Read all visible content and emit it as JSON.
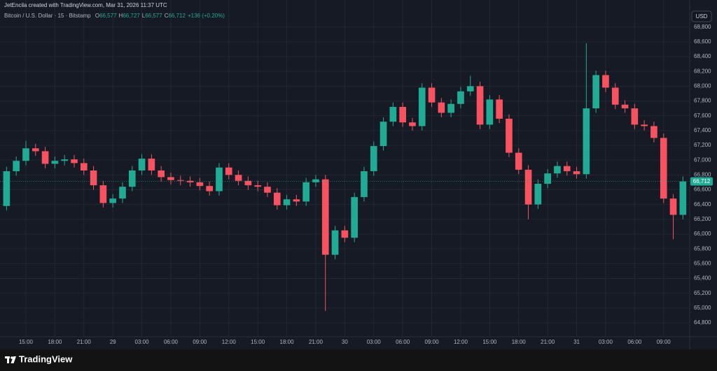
{
  "header": {
    "credit": "JetEncila created with TradingView.com, Mar 31, 2026 11:37 UTC",
    "symbol": "Bitcoin / U.S. Dollar · 15 · Bitstamp",
    "ohlc": [
      {
        "label": "O",
        "value": "66,577"
      },
      {
        "label": "H",
        "value": "66,727"
      },
      {
        "label": "L",
        "value": "66,577"
      },
      {
        "label": "C",
        "value": "66,712"
      }
    ],
    "change": "+136 (+0.20%)"
  },
  "footer": {
    "brand": "TradingView"
  },
  "chart_data": {
    "type": "candlestick",
    "currency": "USD",
    "up_color": "#22ab94",
    "down_color": "#f7525f",
    "grid": true,
    "last_price": {
      "value": 66712,
      "label": "66,712"
    },
    "x": [
      -2,
      -1,
      0,
      1,
      2,
      3,
      4,
      5,
      6,
      7,
      8,
      9,
      10,
      11,
      12,
      13,
      14,
      15,
      16,
      17,
      18,
      19,
      20,
      21,
      22,
      23,
      24,
      25,
      26,
      27,
      28,
      29,
      30,
      31,
      32,
      33,
      34,
      35,
      36,
      37,
      38,
      39,
      40,
      41,
      42,
      43,
      44,
      45,
      46,
      47,
      48,
      49,
      50,
      51,
      52,
      53,
      54,
      55,
      56,
      57,
      58,
      59,
      60,
      61,
      62,
      63,
      64,
      65,
      66,
      67,
      68
    ],
    "open": [
      66380,
      66850,
      66990,
      67160,
      67120,
      66950,
      66990,
      67010,
      66960,
      66860,
      66660,
      66420,
      66480,
      66640,
      66860,
      67020,
      66860,
      66770,
      66730,
      66720,
      66700,
      66650,
      66580,
      66900,
      66800,
      66720,
      66660,
      66640,
      66560,
      66390,
      66470,
      66440,
      66700,
      66740,
      65720,
      66050,
      65950,
      66500,
      66850,
      67190,
      67520,
      67720,
      67510,
      67460,
      67980,
      67780,
      67640,
      67760,
      67930,
      68000,
      67480,
      67820,
      67560,
      67100,
      66870,
      66400,
      66680,
      66820,
      66920,
      66850,
      66810,
      67700,
      68150,
      67980,
      67750,
      67700,
      67480,
      67460,
      67300,
      66480,
      66260
    ],
    "high": [
      66910,
      67050,
      67260,
      67220,
      67180,
      67050,
      67070,
      67070,
      67020,
      66920,
      66720,
      66540,
      66700,
      66920,
      67080,
      67080,
      66920,
      66830,
      66790,
      66780,
      66760,
      66710,
      66960,
      66960,
      66860,
      66780,
      66720,
      66700,
      66620,
      66530,
      66530,
      66760,
      66800,
      66800,
      66110,
      66110,
      66560,
      66910,
      67250,
      67580,
      67780,
      67780,
      67570,
      68040,
      68040,
      67840,
      67820,
      67990,
      68140,
      68060,
      67880,
      67880,
      67620,
      67160,
      66930,
      66740,
      66880,
      66980,
      66980,
      66910,
      68580,
      68210,
      68210,
      68040,
      67810,
      67760,
      67540,
      67520,
      67360,
      66540,
      66780
    ],
    "low": [
      66320,
      66790,
      66930,
      67060,
      66890,
      66890,
      66930,
      66900,
      66800,
      66600,
      66360,
      66360,
      66420,
      66580,
      66800,
      66800,
      66710,
      66670,
      66660,
      66640,
      66590,
      66520,
      66520,
      66740,
      66660,
      66600,
      66580,
      66500,
      66330,
      66330,
      66380,
      66380,
      66640,
      64960,
      65660,
      65890,
      65890,
      66440,
      66790,
      67130,
      67460,
      67450,
      67400,
      67400,
      67720,
      67580,
      67580,
      67700,
      67870,
      67420,
      67420,
      67500,
      67040,
      66810,
      66200,
      66340,
      66620,
      66760,
      66790,
      66750,
      66750,
      67640,
      67920,
      67690,
      67640,
      67420,
      67400,
      67240,
      66420,
      65930,
      66200
    ],
    "close": [
      66850,
      66990,
      67160,
      67120,
      66950,
      66990,
      67010,
      66960,
      66860,
      66660,
      66420,
      66480,
      66640,
      66860,
      67020,
      66860,
      66770,
      66730,
      66720,
      66700,
      66650,
      66580,
      66900,
      66800,
      66720,
      66660,
      66640,
      66560,
      66390,
      66470,
      66440,
      66700,
      66740,
      65720,
      66050,
      65950,
      66500,
      66850,
      67190,
      67520,
      67720,
      67510,
      67460,
      67980,
      67780,
      67640,
      67760,
      67930,
      68000,
      67480,
      67820,
      67560,
      67100,
      66870,
      66400,
      66680,
      66820,
      66920,
      66850,
      66810,
      67700,
      68150,
      67980,
      67750,
      67700,
      67480,
      67460,
      67300,
      66480,
      66260,
      66712
    ],
    "xlim": [
      -2.68,
      68.7
    ],
    "xticks": [
      {
        "value": 0,
        "label": "15:00"
      },
      {
        "value": 3,
        "label": "18:00"
      },
      {
        "value": 6,
        "label": "21:00"
      },
      {
        "value": 9,
        "label": "29"
      },
      {
        "value": 12,
        "label": "03:00"
      },
      {
        "value": 15,
        "label": "06:00"
      },
      {
        "value": 18,
        "label": "09:00"
      },
      {
        "value": 21,
        "label": "12:00"
      },
      {
        "value": 24,
        "label": "15:00"
      },
      {
        "value": 27,
        "label": "18:00"
      },
      {
        "value": 30,
        "label": "21:00"
      },
      {
        "value": 33,
        "label": "30"
      },
      {
        "value": 36,
        "label": "03:00"
      },
      {
        "value": 39,
        "label": "06:00"
      },
      {
        "value": 42,
        "label": "09:00"
      },
      {
        "value": 45,
        "label": "12:00"
      },
      {
        "value": 48,
        "label": "15:00"
      },
      {
        "value": 51,
        "label": "18:00"
      },
      {
        "value": 54,
        "label": "21:00"
      },
      {
        "value": 57,
        "label": "31"
      },
      {
        "value": 60,
        "label": "03:00"
      },
      {
        "value": 63,
        "label": "06:00"
      },
      {
        "value": 66,
        "label": "09:00"
      }
    ],
    "ylim": [
      64611,
      68882
    ],
    "yticks": [
      {
        "value": 64800,
        "label": "64,800"
      },
      {
        "value": 65000,
        "label": "65,000"
      },
      {
        "value": 65200,
        "label": "65,200"
      },
      {
        "value": 65400,
        "label": "65,400"
      },
      {
        "value": 65600,
        "label": "65,600"
      },
      {
        "value": 65800,
        "label": "65,800"
      },
      {
        "value": 66000,
        "label": "66,000"
      },
      {
        "value": 66200,
        "label": "66,200"
      },
      {
        "value": 66400,
        "label": "66,400"
      },
      {
        "value": 66600,
        "label": "66,600"
      },
      {
        "value": 66800,
        "label": "66,800"
      },
      {
        "value": 67000,
        "label": "67,000"
      },
      {
        "value": 67200,
        "label": "67,200"
      },
      {
        "value": 67400,
        "label": "67,400"
      },
      {
        "value": 67600,
        "label": "67,600"
      },
      {
        "value": 67800,
        "label": "67,800"
      },
      {
        "value": 68000,
        "label": "68,000"
      },
      {
        "value": 68200,
        "label": "68,200"
      },
      {
        "value": 68400,
        "label": "68,400"
      },
      {
        "value": 68600,
        "label": "68,600"
      },
      {
        "value": 68800,
        "label": "68,800"
      }
    ]
  }
}
